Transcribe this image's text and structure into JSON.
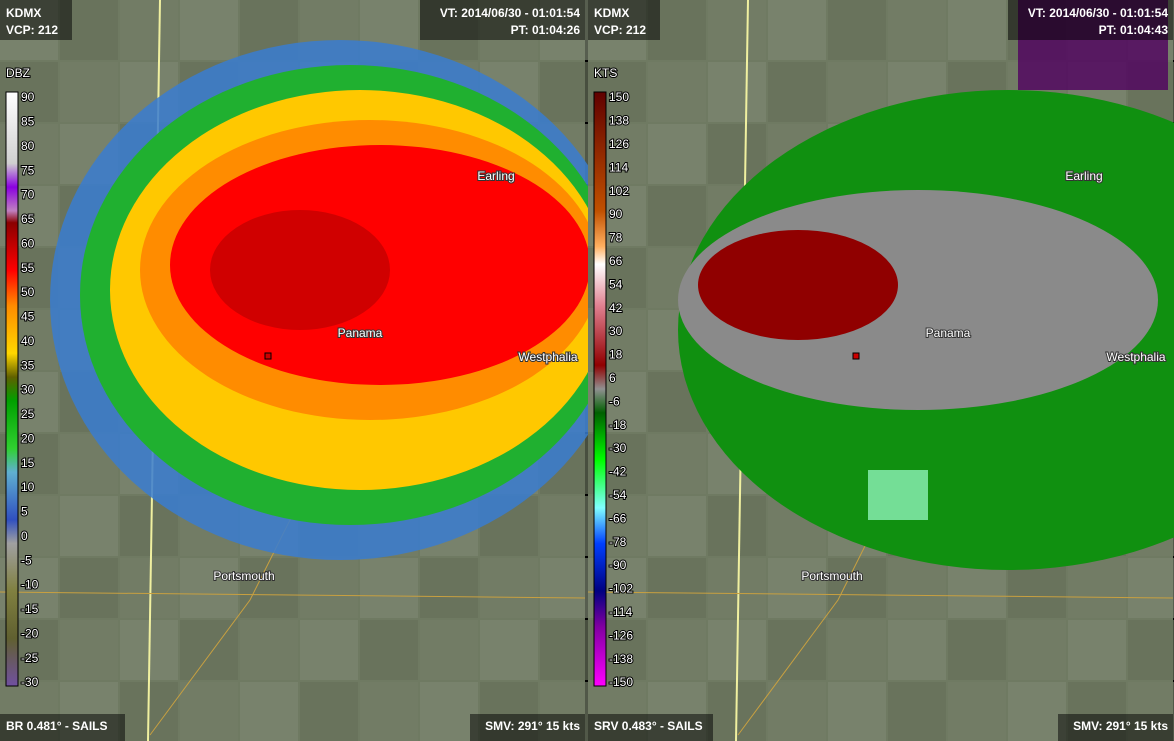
{
  "panels": [
    {
      "site": "KDMX",
      "vcp": "VCP: 212",
      "vt": "VT: 2014/06/30 - 01:01:54",
      "pt": "PT: 01:04:26",
      "unit": "DBZ",
      "legend": [
        "90",
        "85",
        "80",
        "75",
        "70",
        "65",
        "60",
        "55",
        "50",
        "45",
        "40",
        "35",
        "30",
        "25",
        "20",
        "15",
        "10",
        "5",
        "0",
        "-5",
        "-10",
        "-15",
        "-20",
        "-25",
        "-30"
      ],
      "product": "BR 0.481° - SAILS",
      "smv": "SMV: 291° 15 kts",
      "places": [
        "Earling",
        "Panama",
        "Westphalia",
        "Portsmouth"
      ]
    },
    {
      "site": "KDMX",
      "vcp": "VCP: 212",
      "vt": "VT: 2014/06/30 - 01:01:54",
      "pt": "PT: 01:04:43",
      "unit": "KTS",
      "legend": [
        "150",
        "138",
        "126",
        "114",
        "102",
        "90",
        "78",
        "66",
        "54",
        "42",
        "30",
        "18",
        "6",
        "-6",
        "-18",
        "-30",
        "-42",
        "-54",
        "-66",
        "-78",
        "-90",
        "-102",
        "-114",
        "-126",
        "-138",
        "-150"
      ],
      "product": "SRV 0.483° - SAILS",
      "smv": "SMV: 291° 15 kts",
      "places": [
        "Earling",
        "Panama",
        "Westphalia",
        "Portsmouth"
      ]
    }
  ]
}
